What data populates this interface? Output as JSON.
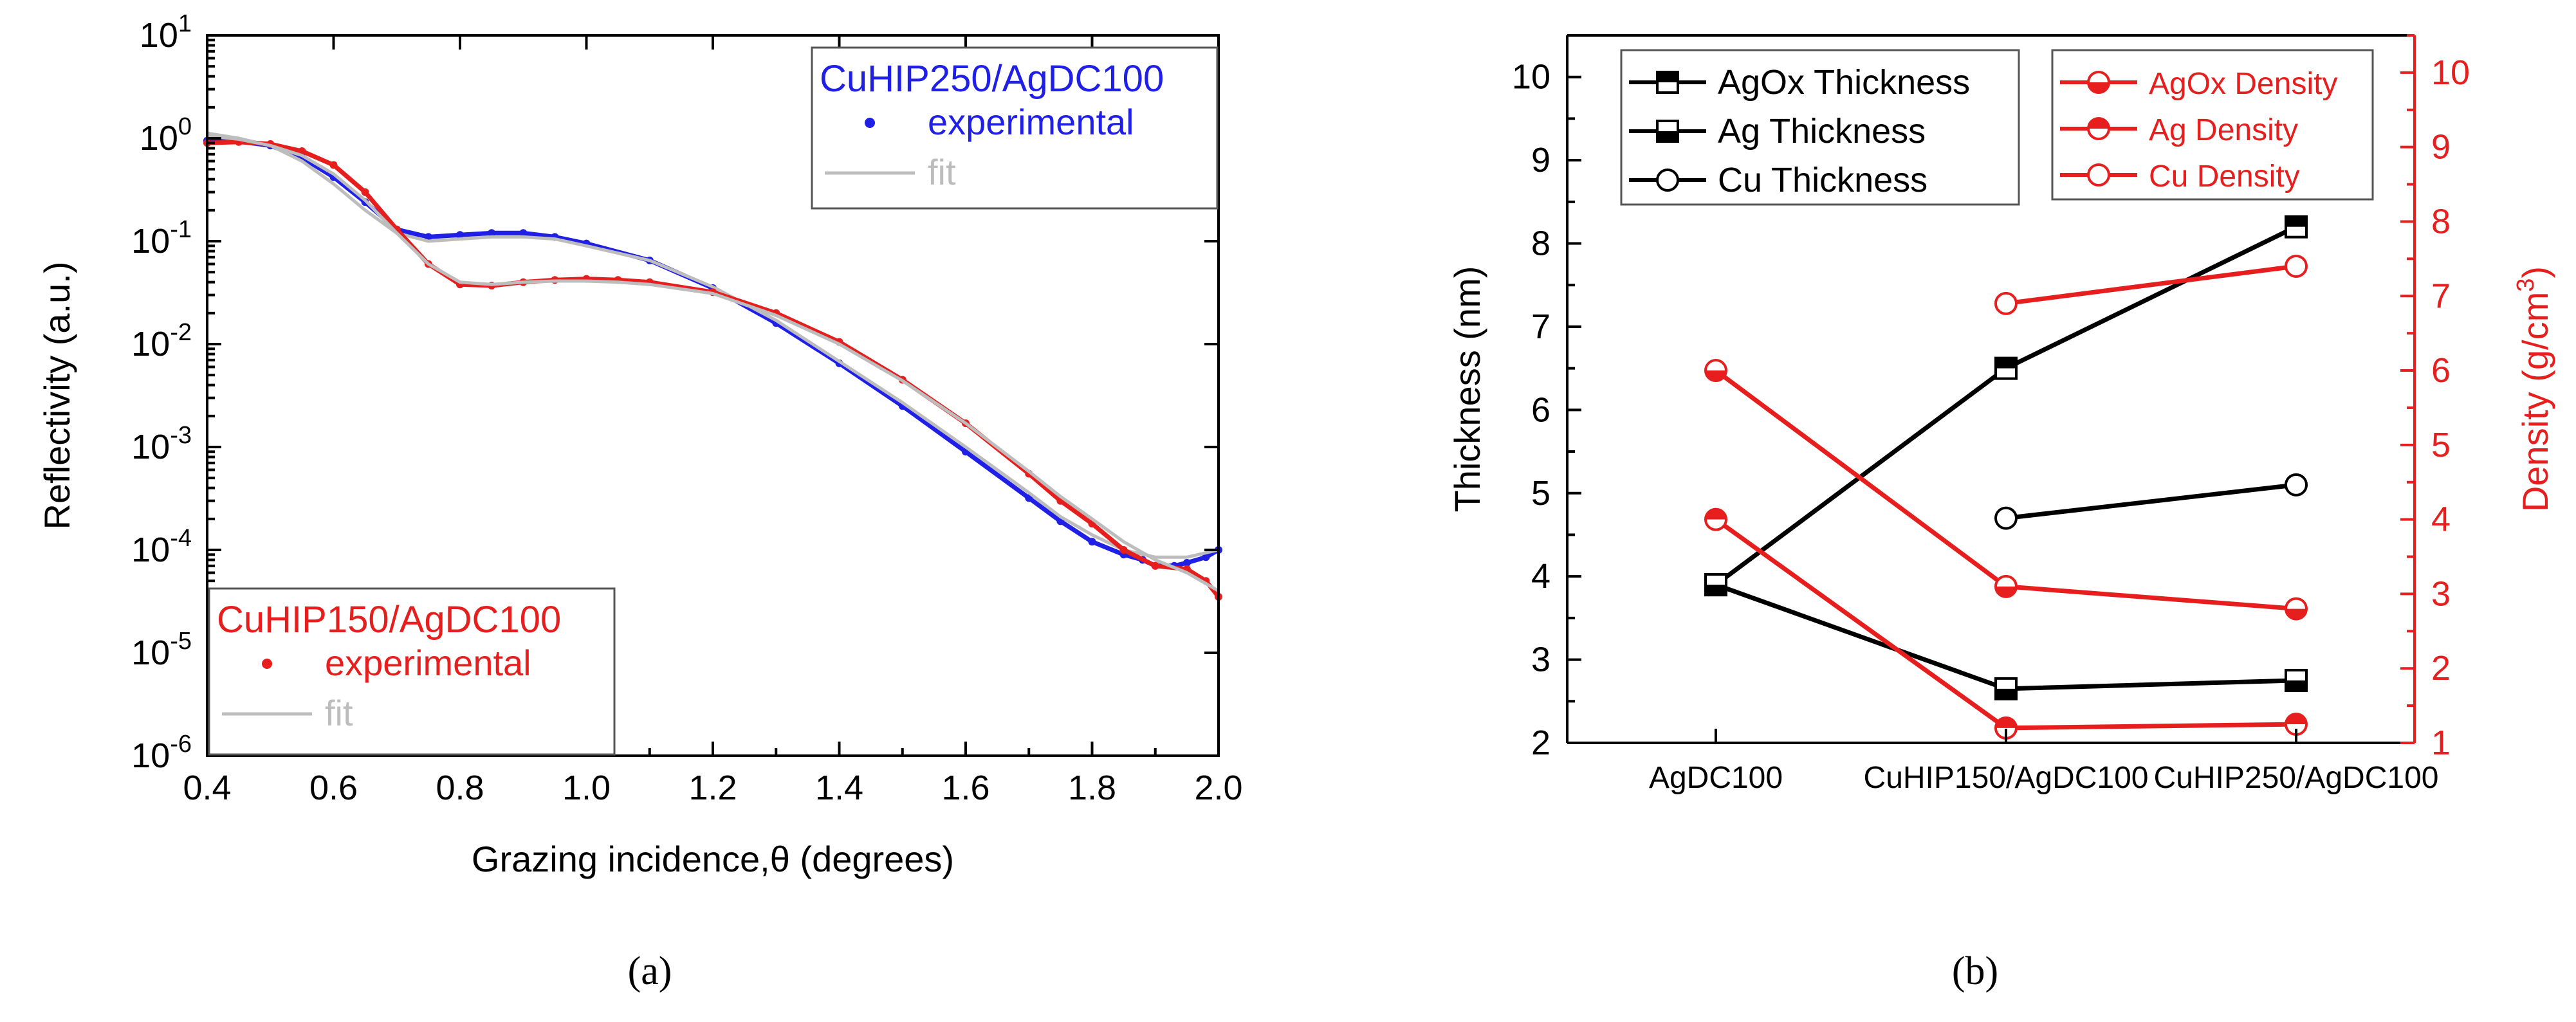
{
  "figure": {
    "panel_a_caption": "(a)",
    "panel_b_caption": "(b)"
  },
  "chart_data": [
    {
      "type": "line",
      "panel": "a",
      "title": "",
      "xlabel": "Grazing incidence,θ (degrees)",
      "ylabel": "Reflectivity (a.u.)",
      "yscale": "log",
      "xlim": [
        0.4,
        2.0
      ],
      "ylim": [
        1e-06,
        10
      ],
      "grid": false,
      "x_ticks": [
        0.4,
        0.6,
        0.8,
        1.0,
        1.2,
        1.4,
        1.6,
        1.8,
        2.0
      ],
      "x_tick_labels": [
        "0.4",
        "0.6",
        "0.8",
        "1.0",
        "1.2",
        "1.4",
        "1.6",
        "1.8",
        "2.0"
      ],
      "y_ticks": [
        1e-06,
        1e-05,
        0.0001,
        0.001,
        0.01,
        0.1,
        1,
        10
      ],
      "y_tick_labels": [
        {
          "base": "10",
          "exp": "-6"
        },
        {
          "base": "10",
          "exp": "-5"
        },
        {
          "base": "10",
          "exp": "-4"
        },
        {
          "base": "10",
          "exp": "-3"
        },
        {
          "base": "10",
          "exp": "-2"
        },
        {
          "base": "10",
          "exp": "-1"
        },
        {
          "base": "10",
          "exp": "0"
        },
        {
          "base": "10",
          "exp": "1"
        }
      ],
      "legends": [
        {
          "title": "CuHIP250/AgDC100",
          "title_color": "#1f1fe6",
          "placement": "top-right",
          "items": [
            {
              "label": "experimental",
              "marker": "dot",
              "color": "#1f1fe6",
              "text_color": "#1f1fe6"
            },
            {
              "label": "fit",
              "marker": "line",
              "color": "#bdbdbd",
              "text_color": "#bdbdbd"
            }
          ]
        },
        {
          "title": "CuHIP150/AgDC100",
          "title_color": "#e61e1e",
          "placement": "bottom-left",
          "items": [
            {
              "label": "experimental",
              "marker": "dot",
              "color": "#e61e1e",
              "text_color": "#e61e1e"
            },
            {
              "label": "fit",
              "marker": "line",
              "color": "#bdbdbd",
              "text_color": "#bdbdbd"
            }
          ]
        }
      ],
      "series": [
        {
          "name": "CuHIP250/AgDC100 experimental",
          "color": "#1f1fe6",
          "x": [
            0.4,
            0.45,
            0.5,
            0.55,
            0.6,
            0.65,
            0.7,
            0.75,
            0.8,
            0.85,
            0.9,
            0.95,
            1.0,
            1.1,
            1.2,
            1.3,
            1.4,
            1.5,
            1.6,
            1.7,
            1.75,
            1.8,
            1.85,
            1.88,
            1.9,
            1.93,
            1.95,
            1.98,
            2.0
          ],
          "y": [
            0.95,
            0.93,
            0.85,
            0.65,
            0.42,
            0.24,
            0.13,
            0.11,
            0.115,
            0.12,
            0.12,
            0.11,
            0.095,
            0.065,
            0.035,
            0.016,
            0.0065,
            0.0025,
            0.0009,
            0.00032,
            0.00019,
            0.00012,
            9e-05,
            8e-05,
            7e-05,
            7e-05,
            7.5e-05,
            8.5e-05,
            0.0001
          ]
        },
        {
          "name": "CuHIP250/AgDC100 fit",
          "color": "#bdbdbd",
          "x": [
            0.4,
            0.45,
            0.5,
            0.55,
            0.6,
            0.65,
            0.7,
            0.75,
            0.8,
            0.85,
            0.9,
            0.95,
            1.0,
            1.1,
            1.2,
            1.3,
            1.4,
            1.5,
            1.6,
            1.7,
            1.75,
            1.8,
            1.85,
            1.9,
            1.95,
            2.0
          ],
          "y": [
            1.12,
            1.0,
            0.85,
            0.6,
            0.36,
            0.2,
            0.12,
            0.1,
            0.105,
            0.11,
            0.11,
            0.105,
            0.09,
            0.065,
            0.036,
            0.017,
            0.0068,
            0.0027,
            0.001,
            0.00036,
            0.00021,
            0.00014,
            0.0001,
            8.5e-05,
            8.5e-05,
            0.0001
          ]
        },
        {
          "name": "CuHIP150/AgDC100 experimental",
          "color": "#e61e1e",
          "x": [
            0.4,
            0.45,
            0.5,
            0.55,
            0.6,
            0.65,
            0.7,
            0.75,
            0.8,
            0.85,
            0.9,
            0.95,
            1.0,
            1.05,
            1.1,
            1.2,
            1.3,
            1.4,
            1.5,
            1.6,
            1.7,
            1.75,
            1.8,
            1.85,
            1.9,
            1.95,
            1.98,
            2.0
          ],
          "y": [
            0.9,
            0.92,
            0.88,
            0.75,
            0.55,
            0.3,
            0.13,
            0.06,
            0.038,
            0.037,
            0.04,
            0.042,
            0.043,
            0.042,
            0.04,
            0.032,
            0.02,
            0.0105,
            0.0045,
            0.0017,
            0.00055,
            0.0003,
            0.00018,
            0.0001,
            7e-05,
            6.5e-05,
            5e-05,
            3.5e-05
          ]
        },
        {
          "name": "CuHIP150/AgDC100 fit",
          "color": "#bdbdbd",
          "x": [
            0.4,
            0.45,
            0.5,
            0.55,
            0.6,
            0.65,
            0.7,
            0.75,
            0.8,
            0.85,
            0.9,
            0.95,
            1.0,
            1.05,
            1.1,
            1.2,
            1.3,
            1.4,
            1.5,
            1.6,
            1.7,
            1.75,
            1.8,
            1.85,
            1.9,
            1.95,
            2.0
          ],
          "y": [
            1.05,
            0.98,
            0.85,
            0.68,
            0.45,
            0.25,
            0.12,
            0.06,
            0.04,
            0.038,
            0.04,
            0.041,
            0.041,
            0.04,
            0.038,
            0.031,
            0.019,
            0.01,
            0.0044,
            0.0017,
            0.00058,
            0.00033,
            0.0002,
            0.00012,
            8e-05,
            6e-05,
            4e-05
          ]
        }
      ]
    },
    {
      "type": "line",
      "panel": "b",
      "title": "",
      "xlabel": "",
      "ylabel": "Thickness (nm)",
      "y2label": "Density (g/cm3)",
      "y2label_parts": {
        "main": "Density (g/cm",
        "sup": "3",
        "end": ")"
      },
      "categories": [
        "AgDC100",
        "CuHIP150/AgDC100",
        "CuHIP250/AgDC100"
      ],
      "ylim": [
        2,
        10.5
      ],
      "y2lim": [
        1,
        10.5
      ],
      "y_ticks": [
        2,
        3,
        4,
        5,
        6,
        7,
        8,
        9,
        10
      ],
      "y2_ticks": [
        1,
        2,
        3,
        4,
        5,
        6,
        7,
        8,
        9,
        10
      ],
      "grid": false,
      "series": [
        {
          "name": "AgOx Thickness",
          "axis": "left",
          "color": "#000000",
          "marker": "square-top-half",
          "values": [
            3.9,
            6.5,
            8.2
          ]
        },
        {
          "name": "Ag Thickness",
          "axis": "left",
          "color": "#000000",
          "marker": "square-bottom-half",
          "values": [
            3.9,
            2.65,
            2.75
          ]
        },
        {
          "name": "Cu Thickness",
          "axis": "left",
          "color": "#000000",
          "marker": "circle-open",
          "values": [
            null,
            4.7,
            5.1
          ]
        },
        {
          "name": "AgOx Density",
          "axis": "right",
          "color": "#e61e1e",
          "marker": "circle-bottom-half",
          "values": [
            6.0,
            3.1,
            2.8
          ]
        },
        {
          "name": "Ag Density",
          "axis": "right",
          "color": "#e61e1e",
          "marker": "circle-top-half",
          "values": [
            4.0,
            1.2,
            1.25
          ]
        },
        {
          "name": "Cu Density",
          "axis": "right",
          "color": "#e61e1e",
          "marker": "circle-open",
          "values": [
            null,
            6.9,
            7.4
          ]
        }
      ],
      "legends": [
        {
          "placement": "top-left",
          "items": [
            "AgOx Thickness",
            "Ag Thickness",
            "Cu Thickness"
          ],
          "text_color": "#000000"
        },
        {
          "placement": "top-right",
          "items": [
            "AgOx Density",
            "Ag Density",
            "Cu Density"
          ],
          "text_color": "#e61e1e"
        }
      ]
    }
  ]
}
